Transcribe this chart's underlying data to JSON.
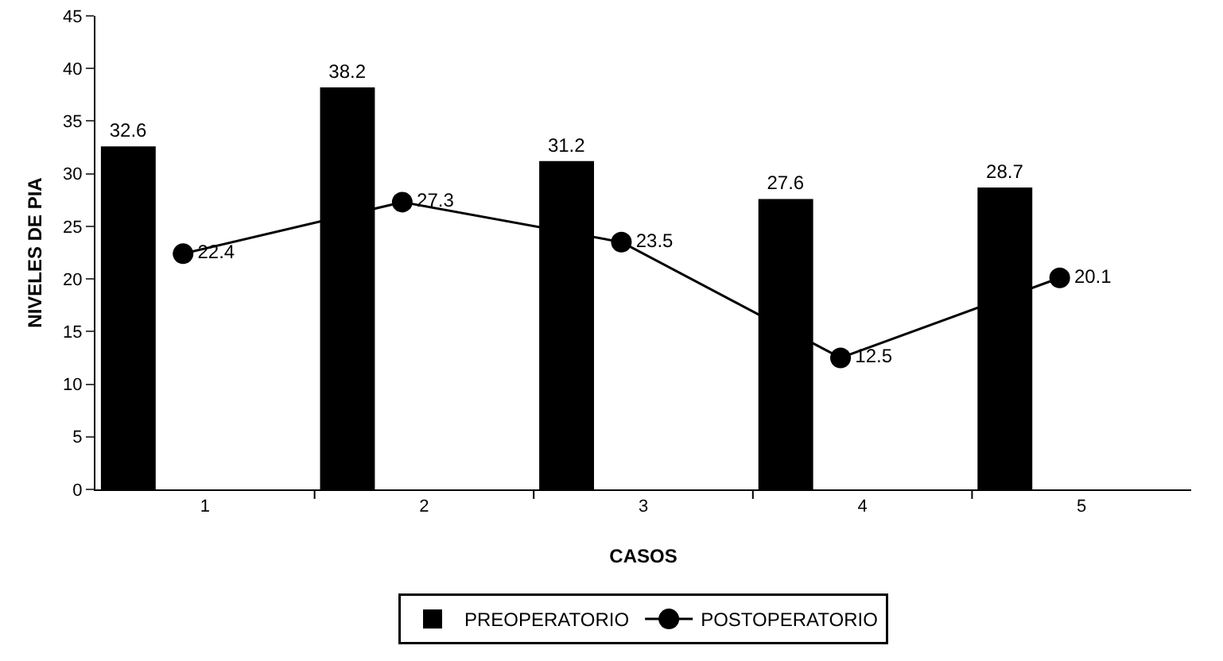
{
  "chart_data": {
    "type": "bar",
    "xlabel": "CASOS",
    "ylabel": "NIVELES DE PIA",
    "categories": [
      "1",
      "2",
      "3",
      "4",
      "5"
    ],
    "series": [
      {
        "name": "PREOPERATORIO",
        "color": "#000000",
        "values": [
          32.6,
          38.2,
          31.2,
          27.6,
          28.7
        ]
      },
      {
        "name": "POSTOPERATORIO",
        "type": "line",
        "color": "#000000",
        "values": [
          22.4,
          27.3,
          23.5,
          12.5,
          20.1
        ]
      }
    ],
    "ylim": [
      0,
      45
    ],
    "yticks": [
      0,
      5,
      10,
      15,
      20,
      25,
      30,
      35,
      40,
      45
    ],
    "data_labels": true,
    "grid": false,
    "legend": "bottom",
    "marker": "circle",
    "line_style": "solid"
  }
}
